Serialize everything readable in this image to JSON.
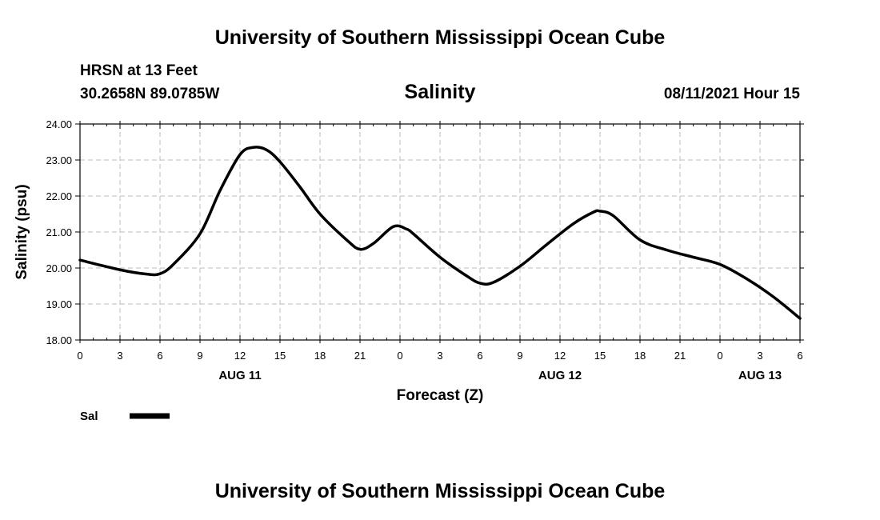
{
  "header": {
    "title_top": "University of Southern Mississippi Ocean Cube",
    "station": "HRSN at 13 Feet",
    "coords": "30.2658N  89.0785W",
    "variable": "Salinity",
    "datetime": "08/11/2021 Hour 15"
  },
  "footer": {
    "title_bottom": "University of Southern Mississippi Ocean Cube"
  },
  "legend": {
    "label": "Sal",
    "color": "#000000"
  },
  "chart_data": {
    "type": "line",
    "title": "Salinity",
    "xlabel": "Forecast (Z)",
    "ylabel": "Salinity (psu)",
    "ylim": [
      18.0,
      24.0
    ],
    "xlim": [
      0,
      54
    ],
    "grid": true,
    "y_ticks": [
      "18.00",
      "19.00",
      "20.00",
      "21.00",
      "22.00",
      "23.00",
      "24.00"
    ],
    "x_tick_labels": [
      "0",
      "3",
      "6",
      "9",
      "12",
      "15",
      "18",
      "21",
      "0",
      "3",
      "6",
      "9",
      "12",
      "15",
      "18",
      "21",
      "0",
      "3",
      "6"
    ],
    "date_labels": [
      {
        "label": "AUG 11",
        "x": 12
      },
      {
        "label": "AUG 12",
        "x": 36
      },
      {
        "label": "AUG 13",
        "x": 51
      }
    ],
    "series": [
      {
        "name": "Sal",
        "x": [
          0,
          3,
          5,
          6,
          7,
          9,
          10.5,
          12,
          13,
          14,
          15,
          16.5,
          18,
          20,
          21,
          22,
          23.5,
          24.5,
          25,
          27,
          29,
          30,
          31,
          33,
          35,
          37,
          38.5,
          39,
          40,
          42,
          44,
          46,
          48,
          50,
          52,
          54
        ],
        "values": [
          20.22,
          19.95,
          19.83,
          19.84,
          20.1,
          20.95,
          22.15,
          23.15,
          23.35,
          23.28,
          22.95,
          22.25,
          21.5,
          20.78,
          20.52,
          20.68,
          21.15,
          21.08,
          20.95,
          20.3,
          19.78,
          19.58,
          19.6,
          20.05,
          20.65,
          21.23,
          21.55,
          21.58,
          21.45,
          20.78,
          20.5,
          20.3,
          20.1,
          19.7,
          19.2,
          18.6
        ]
      }
    ]
  }
}
